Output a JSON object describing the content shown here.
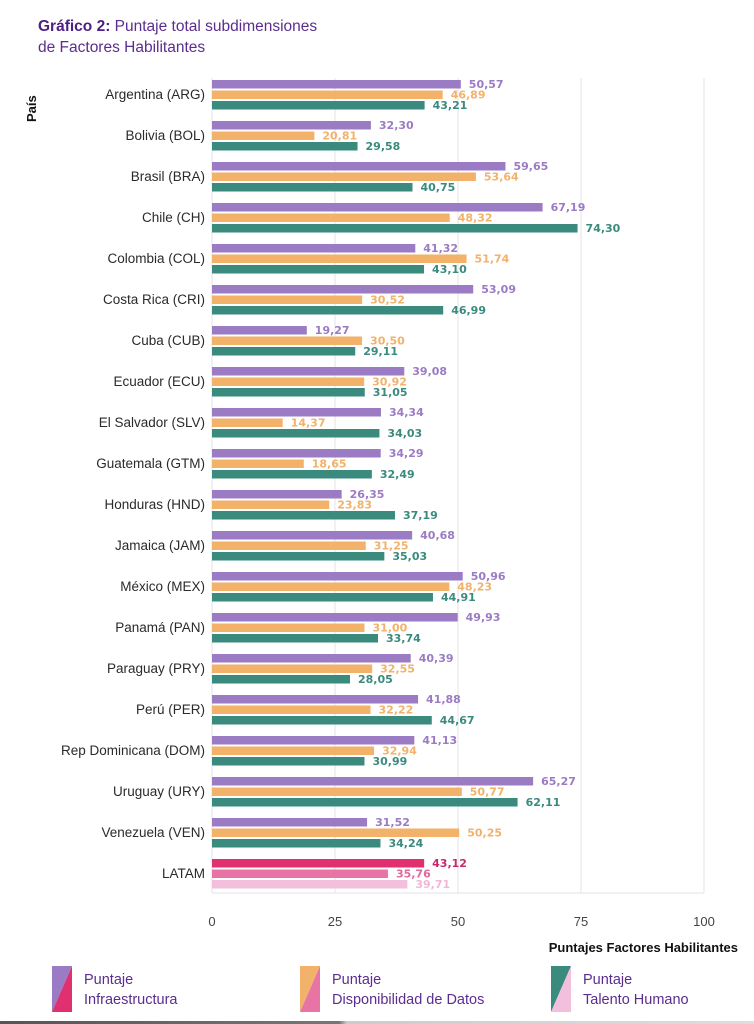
{
  "title": {
    "bold": "Gráfico 2:",
    "rest_line1": "Puntaje total subdimensiones",
    "line2": "de Factores Habilitantes"
  },
  "colors": {
    "infra": "#9b7bc4",
    "datos": "#f2b26a",
    "talento": "#3a8a7e",
    "latam_infra": "#e0306f",
    "latam_datos": "#e874a6",
    "latam_talento": "#f2bfdc",
    "grid": "#e3e3ea",
    "tick": "#444444"
  },
  "chart_data": {
    "type": "bar",
    "orientation": "horizontal",
    "title": "Gráfico 2: Puntaje total subdimensiones de Factores Habilitantes",
    "xlabel": "Puntajes Factores Habilitantes",
    "ylabel": "País",
    "xlim": [
      0,
      100
    ],
    "xticks": [
      "0",
      "25",
      "50",
      "75",
      "100"
    ],
    "grid": true,
    "legend_position": "bottom",
    "categories": [
      "Argentina (ARG)",
      "Bolivia (BOL)",
      "Brasil (BRA)",
      "Chile (CH)",
      "Colombia (COL)",
      "Costa Rica (CRI)",
      "Cuba (CUB)",
      "Ecuador (ECU)",
      "El Salvador (SLV)",
      "Guatemala (GTM)",
      "Honduras (HND)",
      "Jamaica (JAM)",
      "México (MEX)",
      "Panamá (PAN)",
      "Paraguay (PRY)",
      "Perú (PER)",
      "Rep Dominicana (DOM)",
      "Uruguay (URY)",
      "Venezuela (VEN)",
      "LATAM"
    ],
    "series": [
      {
        "name": "Puntaje Infraestructura",
        "values": [
          50.57,
          32.3,
          59.65,
          67.19,
          41.32,
          53.09,
          19.27,
          39.08,
          34.34,
          34.29,
          26.35,
          40.68,
          50.96,
          49.93,
          40.39,
          41.88,
          41.13,
          65.27,
          31.52,
          43.12
        ],
        "labels": [
          "50,57",
          "32,30",
          "59,65",
          "67,19",
          "41,32",
          "53,09",
          "19,27",
          "39,08",
          "34,34",
          "34,29",
          "26,35",
          "40,68",
          "50,96",
          "49,93",
          "40,39",
          "41,88",
          "41,13",
          "65,27",
          "31,52",
          "43,12"
        ]
      },
      {
        "name": "Puntaje Disponibilidad de Datos",
        "values": [
          46.89,
          20.81,
          53.64,
          48.32,
          51.74,
          30.52,
          30.5,
          30.92,
          14.37,
          18.65,
          23.83,
          31.25,
          48.23,
          31.0,
          32.55,
          32.22,
          32.94,
          50.77,
          50.25,
          35.76
        ],
        "labels": [
          "46,89",
          "20,81",
          "53,64",
          "48,32",
          "51,74",
          "30,52",
          "30,50",
          "30,92",
          "14,37",
          "18,65",
          "23,83",
          "31,25",
          "48,23",
          "31,00",
          "32,55",
          "32,22",
          "32,94",
          "50,77",
          "50,25",
          "35,76"
        ]
      },
      {
        "name": "Puntaje Talento Humano",
        "values": [
          43.21,
          29.58,
          40.75,
          74.3,
          43.1,
          46.99,
          29.11,
          31.05,
          34.03,
          32.49,
          37.19,
          35.03,
          44.91,
          33.74,
          28.05,
          44.67,
          30.99,
          62.11,
          34.24,
          39.71
        ],
        "labels": [
          "43,21",
          "29,58",
          "40,75",
          "74,30",
          "43,10",
          "46,99",
          "29,11",
          "31,05",
          "34,03",
          "32,49",
          "37,19",
          "35,03",
          "44,91",
          "33,74",
          "28,05",
          "44,67",
          "30,99",
          "62,11",
          "34,24",
          "39,71"
        ]
      }
    ]
  },
  "legend": [
    {
      "line1": "Puntaje",
      "line2": "Infraestructura"
    },
    {
      "line1": "Puntaje",
      "line2": "Disponibilidad de Datos"
    },
    {
      "line1": "Puntaje",
      "line2": "Talento Humano"
    }
  ]
}
